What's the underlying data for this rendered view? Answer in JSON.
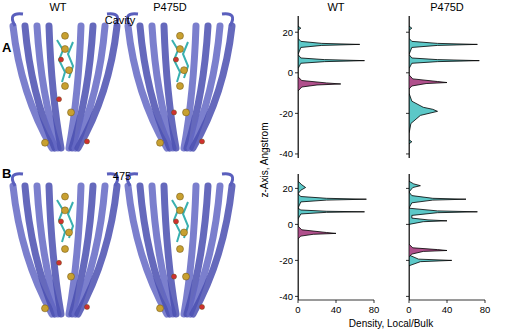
{
  "figure": {
    "panel_labels": [
      "A",
      "B"
    ],
    "structure_labels": [
      "WT",
      "P475D"
    ],
    "site_labels": [
      "Cavity",
      "475"
    ],
    "x_label": "Density, Local/Bulk",
    "y_label": "z-Axis, Angstrom"
  },
  "chart_data": [
    {
      "type": "line",
      "title": "WT",
      "xlim": [
        0,
        80
      ],
      "xticks": [
        0,
        40,
        80
      ],
      "ylim": [
        -42,
        28
      ],
      "yticks": [
        -40,
        -20,
        0,
        20
      ],
      "tick_labels": "y",
      "series": [
        {
          "type": "area",
          "color": "#5cc8c8",
          "x": [
            0,
            0,
            3,
            0,
            0,
            3,
            25,
            65,
            25,
            3,
            0,
            3,
            28,
            70,
            28,
            3,
            0,
            0
          ],
          "values": [
            28,
            23,
            22,
            21,
            17,
            15.5,
            14.5,
            14,
            13.5,
            12.5,
            9,
            7.3,
            6.5,
            6,
            5.5,
            4.7,
            2,
            -42
          ]
        },
        {
          "type": "area",
          "color": "#b0508c",
          "x": [
            0,
            0,
            4,
            30,
            45,
            20,
            4,
            0,
            0
          ],
          "values": [
            28,
            -2,
            -3.8,
            -5,
            -5.5,
            -6,
            -7,
            -9,
            -42
          ]
        }
      ]
    },
    {
      "type": "line",
      "title": "P475D",
      "xlim": [
        0,
        80
      ],
      "xticks": [
        0,
        40,
        80
      ],
      "ylim": [
        -42,
        28
      ],
      "yticks": [
        -40,
        -20,
        0,
        20
      ],
      "tick_labels": false,
      "series": [
        {
          "type": "area",
          "color": "#5cc8c8",
          "x": [
            0,
            0,
            3,
            0,
            0,
            3,
            30,
            72,
            30,
            3,
            0,
            3,
            30,
            74,
            30,
            3,
            0,
            0,
            3,
            15,
            25,
            30,
            12,
            2,
            0,
            0,
            3,
            0,
            0
          ],
          "values": [
            28,
            23,
            22,
            21,
            17,
            15.5,
            14.5,
            14,
            13.5,
            12.5,
            9,
            7.3,
            6.5,
            6,
            5.5,
            4.7,
            2,
            -10,
            -14,
            -17,
            -18,
            -19,
            -21,
            -25,
            -30,
            -33,
            -34,
            -35,
            -42
          ]
        },
        {
          "type": "area",
          "color": "#b0508c",
          "x": [
            0,
            0,
            4,
            30,
            40,
            18,
            3,
            0,
            0
          ],
          "values": [
            28,
            -1,
            -3,
            -4.3,
            -4.8,
            -5.3,
            -6.5,
            -8,
            -42
          ]
        }
      ]
    },
    {
      "type": "line",
      "xlim": [
        0,
        80
      ],
      "xticks": [
        0,
        40,
        80
      ],
      "ylim": [
        -42,
        28
      ],
      "yticks": [
        -40,
        -20,
        0,
        20
      ],
      "tick_labels": true,
      "series": [
        {
          "type": "area",
          "color": "#5cc8c8",
          "x": [
            0,
            0,
            4,
            8,
            3,
            0,
            3,
            30,
            72,
            30,
            3,
            0,
            3,
            30,
            70,
            30,
            3,
            0,
            0
          ],
          "values": [
            28,
            24,
            22,
            20.5,
            19,
            17,
            15.5,
            14.5,
            14,
            13.5,
            12.5,
            9,
            8,
            7.3,
            7,
            6.7,
            5.8,
            3,
            -42
          ]
        },
        {
          "type": "area",
          "color": "#b0508c",
          "x": [
            0,
            0,
            4,
            30,
            40,
            16,
            3,
            0,
            0
          ],
          "values": [
            28,
            -1,
            -3,
            -4.5,
            -5,
            -5.5,
            -6.5,
            -8,
            -42
          ]
        }
      ]
    },
    {
      "type": "line",
      "xlim": [
        0,
        80
      ],
      "xticks": [
        0,
        40,
        80
      ],
      "ylim": [
        -42,
        28
      ],
      "yticks": [
        -40,
        -20,
        0,
        20
      ],
      "tick_labels": "x",
      "series": [
        {
          "type": "area",
          "color": "#5cc8c8",
          "x": [
            0,
            0,
            5,
            12,
            4,
            0,
            3,
            25,
            60,
            25,
            3,
            0,
            30,
            72,
            30,
            3,
            3,
            20,
            40,
            15,
            0,
            0,
            10,
            45,
            12,
            0,
            0
          ],
          "values": [
            28,
            24,
            22.5,
            21.5,
            20.5,
            18,
            16,
            14.5,
            14,
            13.5,
            12,
            9,
            7.5,
            7,
            6.5,
            5,
            3.5,
            2.5,
            2,
            1.5,
            0,
            -17,
            -19.3,
            -20,
            -20.7,
            -23,
            -42
          ]
        },
        {
          "type": "area",
          "color": "#b0508c",
          "x": [
            0,
            0,
            4,
            30,
            40,
            15,
            3,
            0,
            0
          ],
          "values": [
            28,
            -11,
            -13,
            -14,
            -14.5,
            -15,
            -16.5,
            -18,
            -42
          ]
        }
      ]
    }
  ]
}
